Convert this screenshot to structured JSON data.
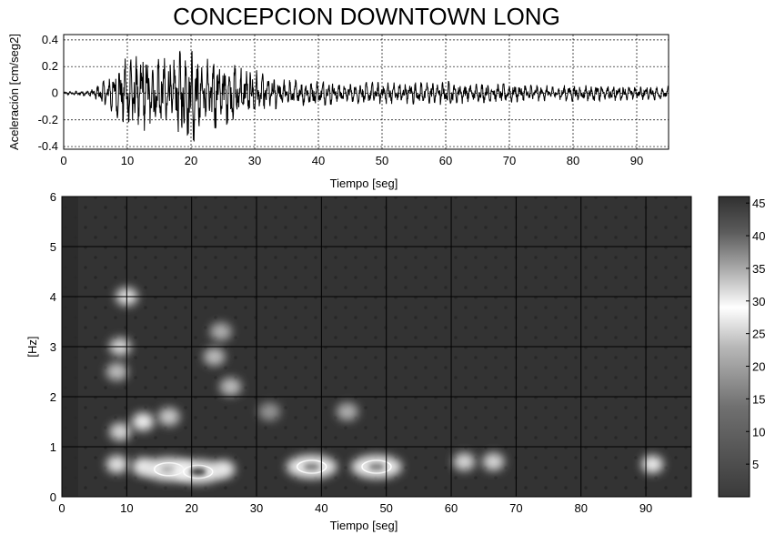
{
  "chart_data": [
    {
      "type": "line",
      "title": "CONCEPCION DOWNTOWN LONG",
      "xlabel": "Tiempo [seg]",
      "ylabel": "Aceleración [cm/seg2]",
      "xlim": [
        0,
        95
      ],
      "ylim": [
        -0.42,
        0.44
      ],
      "xticks": [
        "0",
        "10",
        "20",
        "30",
        "40",
        "50",
        "60",
        "70",
        "80",
        "90"
      ],
      "yticks": [
        "0.4",
        "0.2",
        "0",
        "-0.2",
        "-0.4"
      ],
      "grid": true,
      "series": [
        {
          "x": [
            0,
            4,
            6,
            8,
            10,
            12,
            14,
            16,
            18,
            20,
            22,
            24,
            26,
            28,
            30,
            32,
            35,
            40,
            45,
            50,
            55,
            60,
            65,
            70,
            75,
            80,
            85,
            90,
            95
          ],
          "amplitude": [
            0.01,
            0.02,
            0.08,
            0.16,
            0.28,
            0.33,
            0.3,
            0.26,
            0.3,
            0.4,
            0.24,
            0.3,
            0.22,
            0.2,
            0.18,
            0.13,
            0.1,
            0.09,
            0.08,
            0.08,
            0.08,
            0.09,
            0.07,
            0.07,
            0.06,
            0.06,
            0.06,
            0.05,
            0.05
          ]
        }
      ]
    },
    {
      "type": "heatmap",
      "xlabel": "Tiempo [seg]",
      "ylabel": "[Hz]",
      "xlim": [
        0,
        97
      ],
      "ylim": [
        0,
        6
      ],
      "xticks": [
        "0",
        "10",
        "20",
        "30",
        "40",
        "50",
        "60",
        "70",
        "80",
        "90"
      ],
      "yticks": [
        "6",
        "5",
        "4",
        "3",
        "2",
        "1",
        "0"
      ],
      "grid": true,
      "colorbar": {
        "range": [
          0,
          46
        ],
        "ticks": [
          "45",
          "40",
          "35",
          "30",
          "25",
          "20",
          "15",
          "10",
          "5"
        ]
      },
      "hotspots": [
        {
          "t": 8.5,
          "f": 0.65,
          "value": 26
        },
        {
          "t": 12.5,
          "f": 0.6,
          "value": 30
        },
        {
          "t": 16.5,
          "f": 0.55,
          "value": 36
        },
        {
          "t": 21,
          "f": 0.5,
          "value": 46
        },
        {
          "t": 25,
          "f": 0.55,
          "value": 30
        },
        {
          "t": 38.5,
          "f": 0.6,
          "value": 40
        },
        {
          "t": 48.5,
          "f": 0.6,
          "value": 40
        },
        {
          "t": 62,
          "f": 0.7,
          "value": 24
        },
        {
          "t": 66.5,
          "f": 0.7,
          "value": 24
        },
        {
          "t": 91,
          "f": 0.65,
          "value": 32
        },
        {
          "t": 9,
          "f": 1.3,
          "value": 24
        },
        {
          "t": 12.5,
          "f": 1.5,
          "value": 28
        },
        {
          "t": 16.5,
          "f": 1.6,
          "value": 22
        },
        {
          "t": 8.5,
          "f": 2.5,
          "value": 20
        },
        {
          "t": 9,
          "f": 3.0,
          "value": 24
        },
        {
          "t": 10,
          "f": 4.0,
          "value": 26
        },
        {
          "t": 23.5,
          "f": 2.8,
          "value": 20
        },
        {
          "t": 24.5,
          "f": 3.3,
          "value": 18
        },
        {
          "t": 26,
          "f": 2.2,
          "value": 20
        },
        {
          "t": 44,
          "f": 1.7,
          "value": 18
        },
        {
          "t": 32,
          "f": 1.7,
          "value": 14
        }
      ]
    }
  ]
}
